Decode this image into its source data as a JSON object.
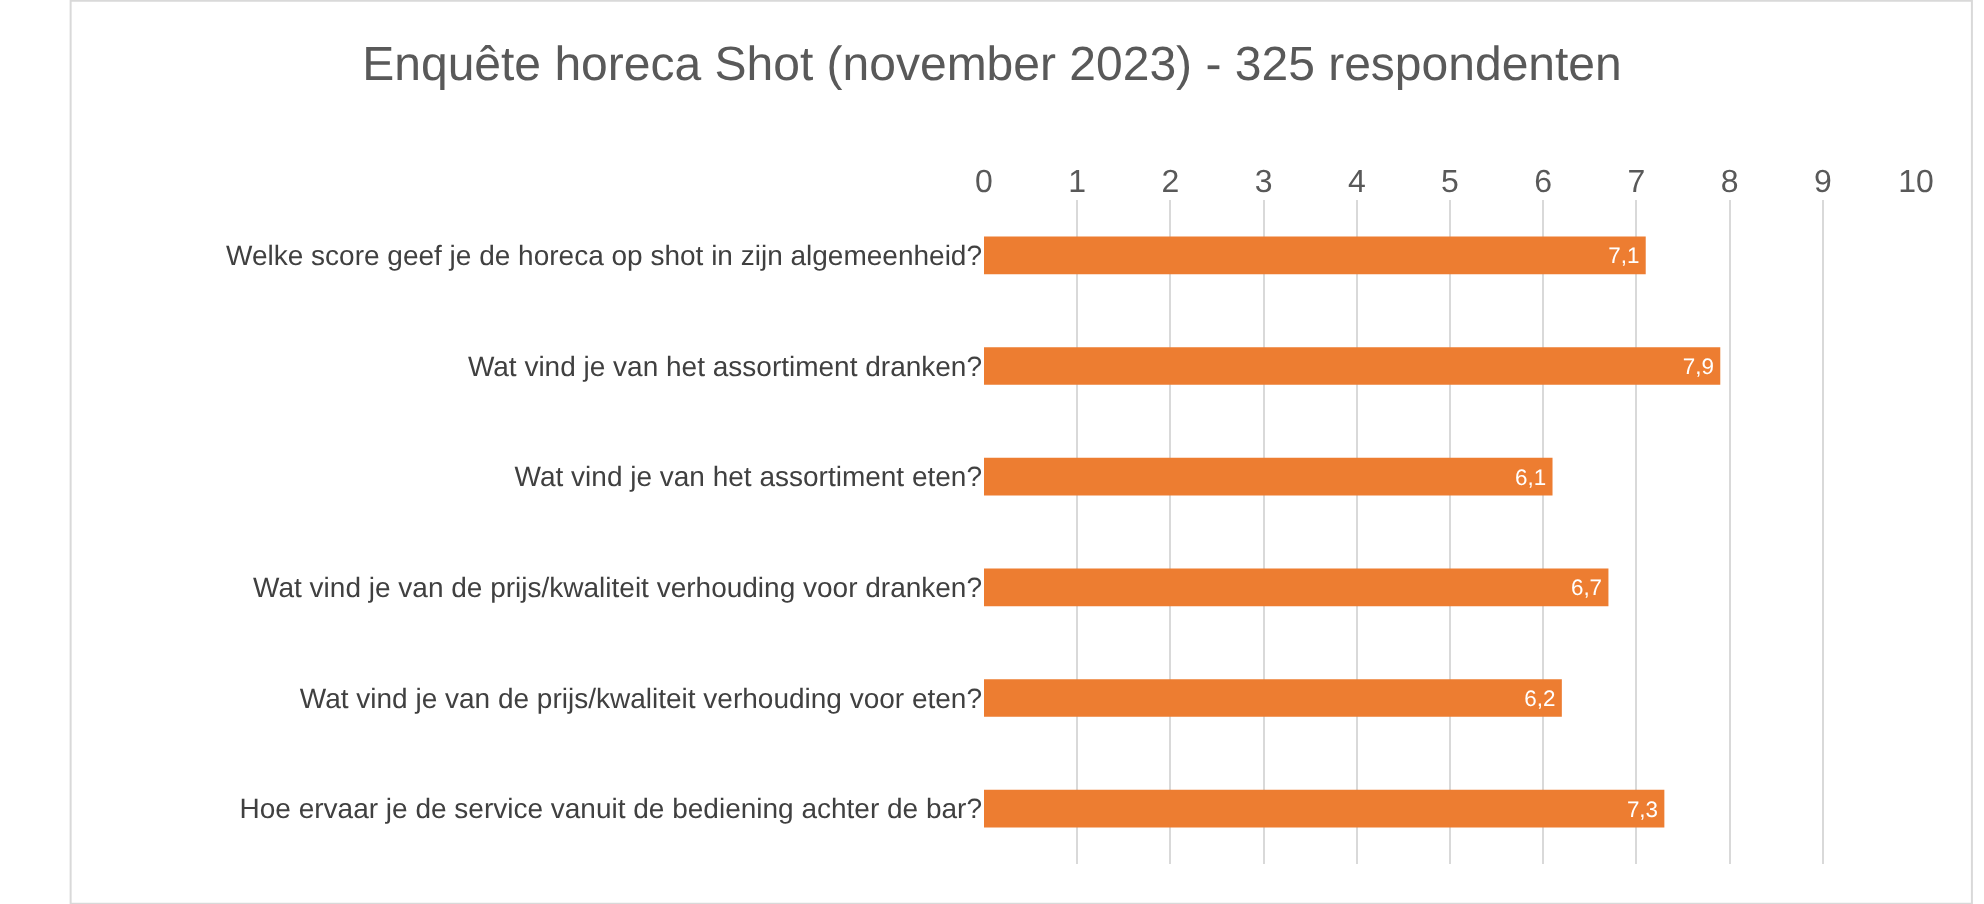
{
  "chart_data": {
    "type": "bar",
    "orientation": "horizontal",
    "title": "Enquête horeca Shot (november 2023) - 325 respondenten",
    "categories": [
      "Welke score geef je de horeca op shot in zijn algemeenheid?",
      "Wat vind je van het assortiment dranken?",
      "Wat vind je van het assortiment eten?",
      "Wat vind je van de prijs/kwaliteit verhouding voor dranken?",
      "Wat vind je van de prijs/kwaliteit verhouding voor eten?",
      "Hoe ervaar je de service vanuit de bediening achter de bar?"
    ],
    "values": [
      7.1,
      7.9,
      6.1,
      6.7,
      6.2,
      7.3
    ],
    "value_labels": [
      "7,1",
      "7,9",
      "6,1",
      "6,7",
      "6,2",
      "7,3"
    ],
    "color": "#ed7d31",
    "xlim": [
      0,
      10
    ],
    "xticks": [
      0,
      1,
      2,
      3,
      4,
      5,
      6,
      7,
      8,
      9,
      10
    ],
    "grid": "x",
    "legend": false
  }
}
